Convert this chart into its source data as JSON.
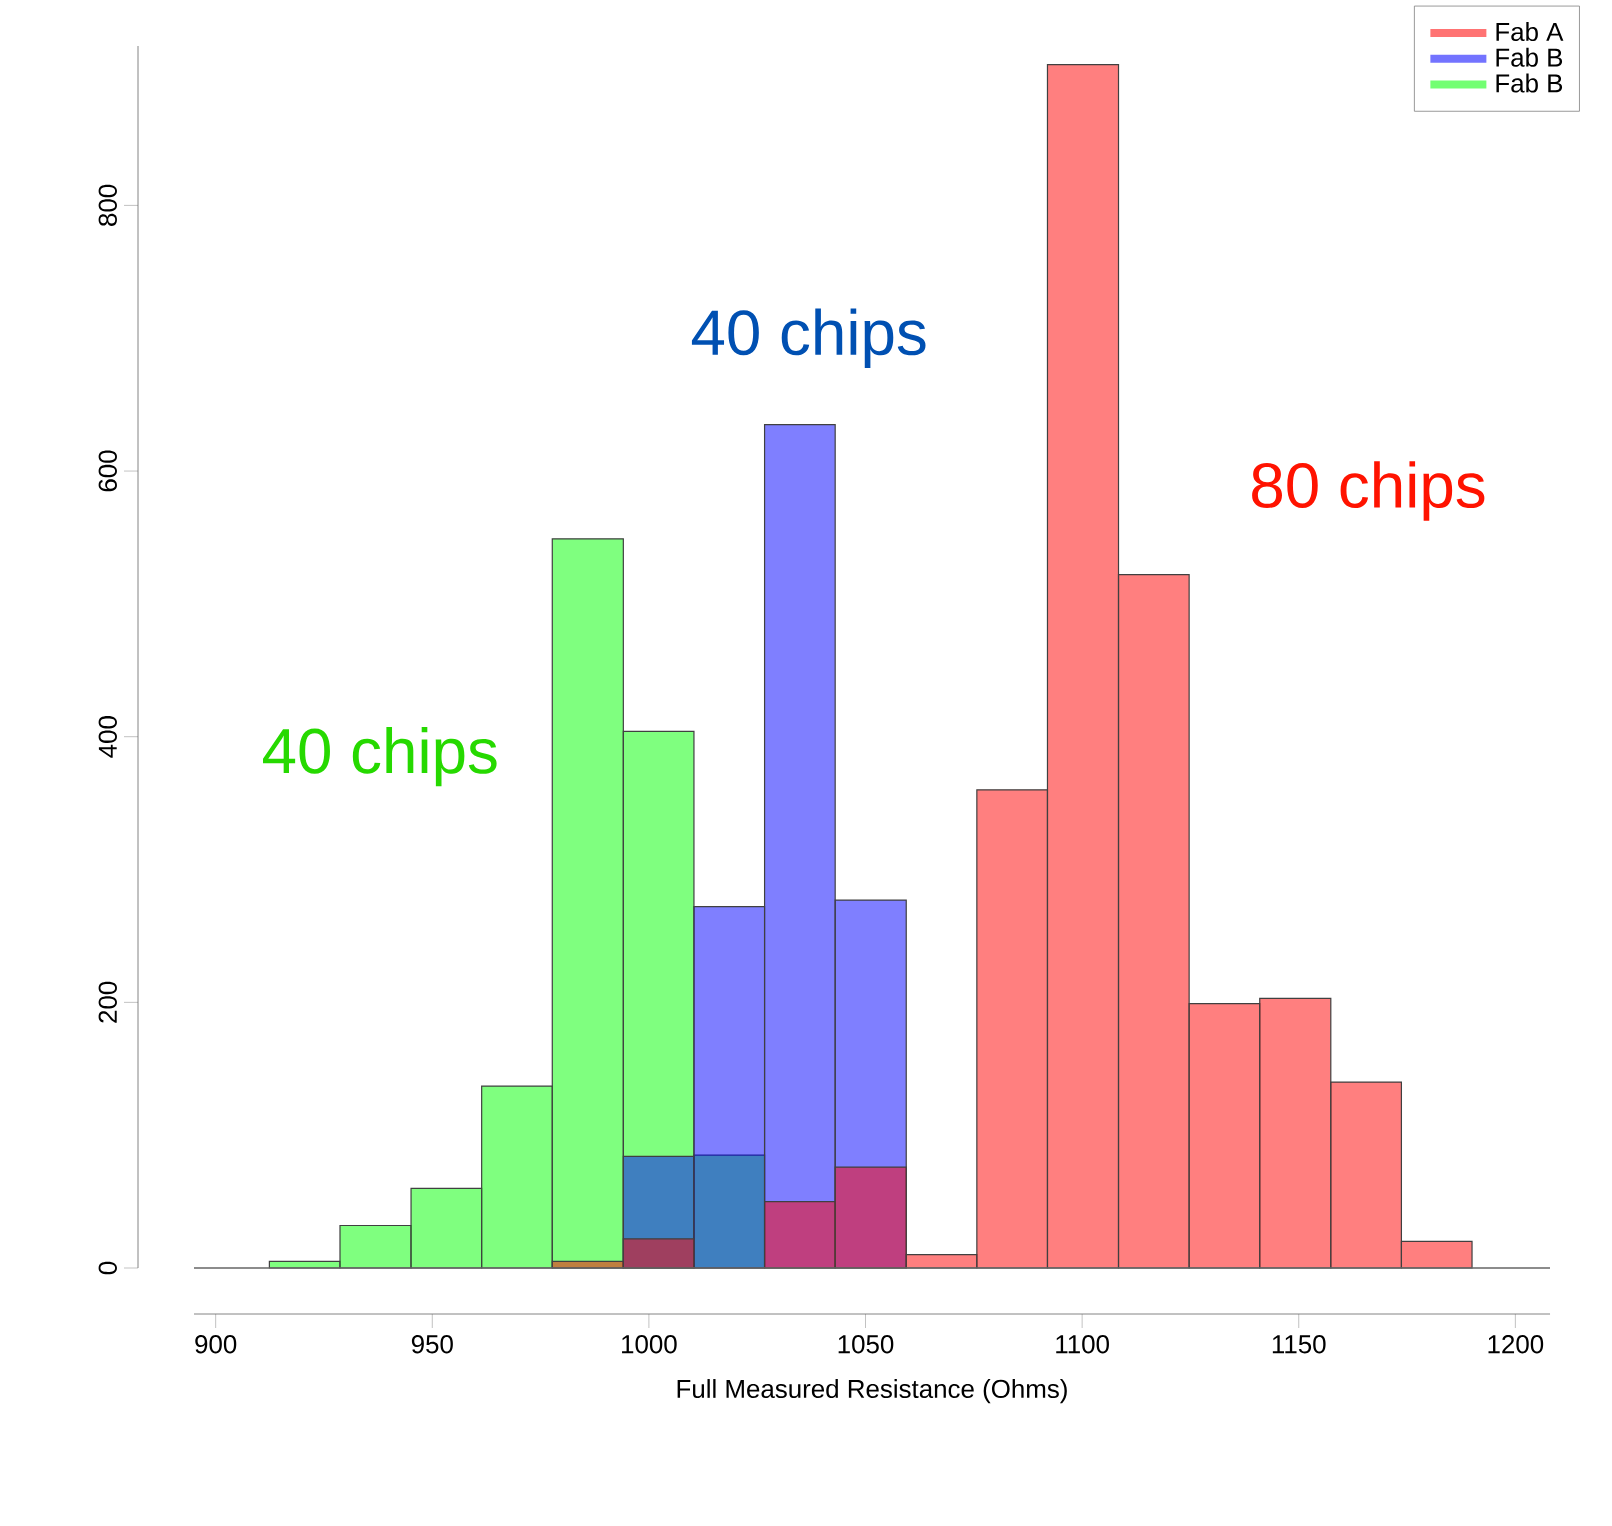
{
  "chart_data": {
    "type": "histogram",
    "xlabel": "Full Measured Resistance (Ohms)",
    "bins": [
      912.4,
      928.7,
      945.1,
      961.4,
      977.7,
      994.1,
      1010.4,
      1026.7,
      1043.0,
      1059.4,
      1075.7,
      1092.0,
      1108.4,
      1124.7,
      1141.0,
      1157.4,
      1173.7,
      1190.0
    ],
    "series": [
      {
        "name": "Fab A",
        "color": "#ff0000",
        "values": [
          null,
          null,
          null,
          null,
          5,
          22,
          null,
          50,
          76,
          10,
          360,
          906,
          522,
          199,
          203,
          140,
          20
        ]
      },
      {
        "name": "Fab B",
        "color": "#0000ff",
        "values": [
          null,
          null,
          null,
          null,
          null,
          84,
          272,
          635,
          277,
          null,
          null,
          null,
          null,
          null,
          null,
          null,
          null
        ]
      },
      {
        "name": "Fab B",
        "color": "#00ff00",
        "values": [
          5,
          32,
          60,
          137,
          549,
          404,
          85,
          null,
          null,
          null,
          null,
          null,
          null,
          null,
          null,
          null,
          null
        ]
      }
    ],
    "annotations": [
      "80 chips",
      "40 chips",
      "40 chips"
    ],
    "xlim": [
      895,
      1208
    ],
    "ylim": [
      0,
      920
    ],
    "xticks": [
      900,
      950,
      1000,
      1050,
      1100,
      1150,
      1200
    ],
    "yticks": [
      0,
      200,
      400,
      600,
      800
    ],
    "ref_lines": [
      {
        "axis": "y",
        "value": 0
      }
    ],
    "grid": false,
    "legend": "top right"
  }
}
